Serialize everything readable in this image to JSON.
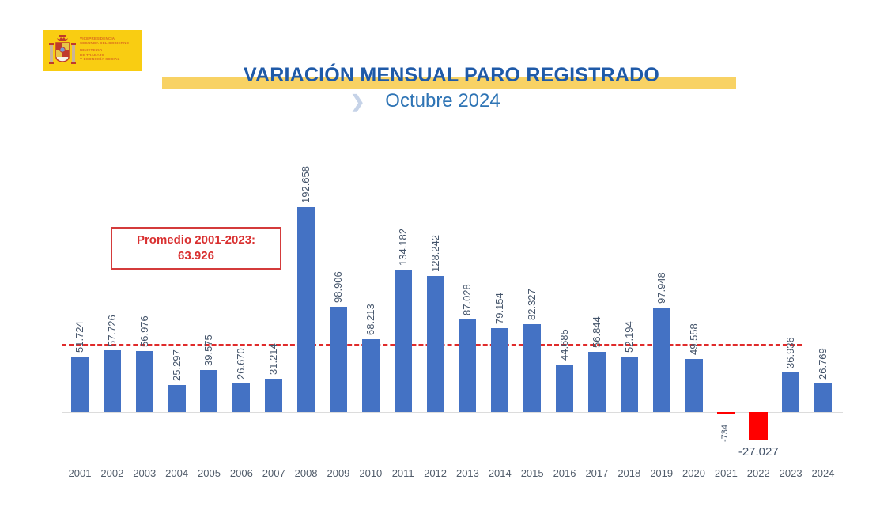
{
  "logo": {
    "dept_line1": "VICEPRESIDENCIA",
    "dept_line2": "SEGUNDA DEL GOBIERNO",
    "min_line1": "MINISTERIO",
    "min_line2": "DE TRABAJO",
    "min_line3": "Y ECONOMÍA SOCIAL",
    "bg_color": "#F9CD12",
    "text_color": "#D96A1E"
  },
  "header": {
    "title": "VARIACIÓN MENSUAL PARO REGISTRADO",
    "subtitle": "Octubre 2024",
    "chevron": "❯",
    "title_color": "#1F5AA8",
    "subtitle_color": "#2E74B5",
    "band_color": "#F8D264"
  },
  "annotation": {
    "line1": "Promedio 2001-2023:",
    "line2": "63.926",
    "value": 63926,
    "border_color": "#D43B3B",
    "text_color": "#D93030"
  },
  "chart_data": {
    "type": "bar",
    "title": "VARIACIÓN MENSUAL PARO REGISTRADO",
    "subtitle": "Octubre 2024",
    "categories": [
      "2001",
      "2002",
      "2003",
      "2004",
      "2005",
      "2006",
      "2007",
      "2008",
      "2009",
      "2010",
      "2011",
      "2012",
      "2013",
      "2014",
      "2015",
      "2016",
      "2017",
      "2018",
      "2019",
      "2020",
      "2021",
      "2022",
      "2023",
      "2024"
    ],
    "values": [
      51724,
      57726,
      56976,
      25297,
      39575,
      26670,
      31214,
      192658,
      98906,
      68213,
      134182,
      128242,
      87028,
      79154,
      82327,
      44685,
      56844,
      52194,
      97948,
      49558,
      -734,
      -27027,
      36936,
      26769
    ],
    "labels": [
      "51.724",
      "57.726",
      "56.976",
      "25.297",
      "39.575",
      "26.670",
      "31.214",
      "192.658",
      "98.906",
      "68.213",
      "134.182",
      "128.242",
      "87.028",
      "79.154",
      "82.327",
      "44.685",
      "56.844",
      "52.194",
      "97.948",
      "49.558",
      "-734",
      "-27.027",
      "36.936",
      "26.769"
    ],
    "xlabel": "",
    "ylabel": "",
    "ylim": [
      -30000,
      200000
    ],
    "grid": false,
    "legend": "none",
    "bar_color_positive": "#4472C4",
    "bar_color_negative": "#FF0000",
    "value_label_color": "#44546A",
    "axis_label_color": "#525D6B",
    "average_line": {
      "value": 63926,
      "label": "Promedio 2001-2023: 63.926",
      "span": "2001-2023",
      "color": "#E02B2B",
      "style": "dashed"
    }
  }
}
